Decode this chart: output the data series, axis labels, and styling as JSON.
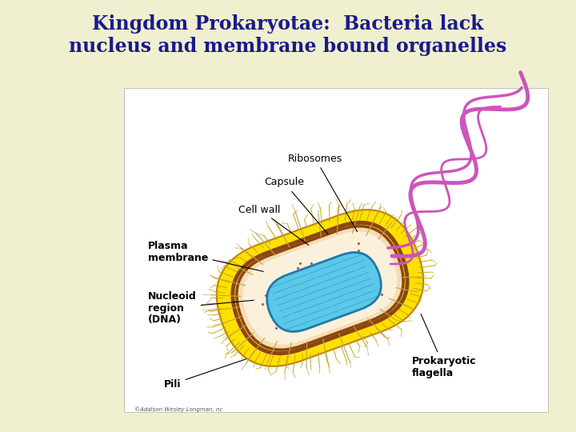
{
  "title_line1": "Kingdom Prokaryotae:  Bacteria lack",
  "title_line2": "nucleus and membrane bound organelles",
  "title_color": "#1a1a8c",
  "title_fontsize": 17,
  "bg_color": "#f0f0d0",
  "diagram_bg": "#ffffff",
  "copyright": "©Addison Wesley Longman, nc"
}
